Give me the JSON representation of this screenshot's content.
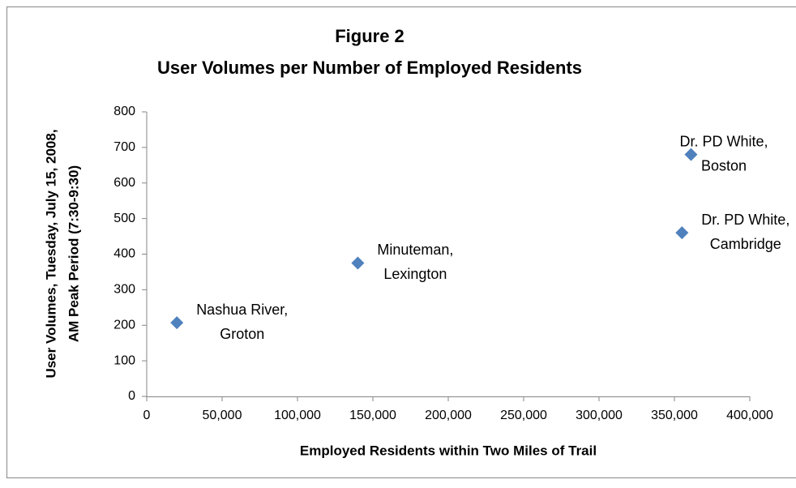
{
  "chart_data": {
    "type": "scatter",
    "title": [
      "Figure 2",
      "User Volumes per Number of Employed Residents"
    ],
    "x_label": "Employed Residents within Two Miles of Trail",
    "y_label": [
      "User Volumes, Tuesday, July 15, 2008,",
      "AM Peak Period (7:30-9:30)"
    ],
    "series": [
      {
        "name": "User Volumes",
        "color": "#4f81bd",
        "x": [
          20000,
          140000,
          355000,
          361000
        ],
        "values": [
          207,
          375,
          460,
          680
        ],
        "point_labels": [
          [
            "Nashua River,",
            "Groton"
          ],
          [
            "Minuteman,",
            "Lexington"
          ],
          [
            "Dr. PD White,",
            "Cambridge"
          ],
          [
            "Dr. PD White,",
            "Boston"
          ]
        ]
      }
    ],
    "xlim": [
      0,
      400000
    ],
    "xticks": [
      0,
      {
        "value": 50000,
        "label": "50,000"
      },
      {
        "value": 100000,
        "label": "100,000"
      },
      {
        "value": 150000,
        "label": "150,000"
      },
      {
        "value": 200000,
        "label": "200,000"
      },
      {
        "value": 250000,
        "label": "250,000"
      },
      {
        "value": 300000,
        "label": "300,000"
      },
      {
        "value": 350000,
        "label": "350,000"
      },
      {
        "value": 400000,
        "label": "400,000"
      }
    ],
    "ylim": [
      0,
      800
    ],
    "yticks": [
      0,
      100,
      200,
      300,
      400,
      500,
      600,
      700,
      800
    ],
    "grid": false
  }
}
